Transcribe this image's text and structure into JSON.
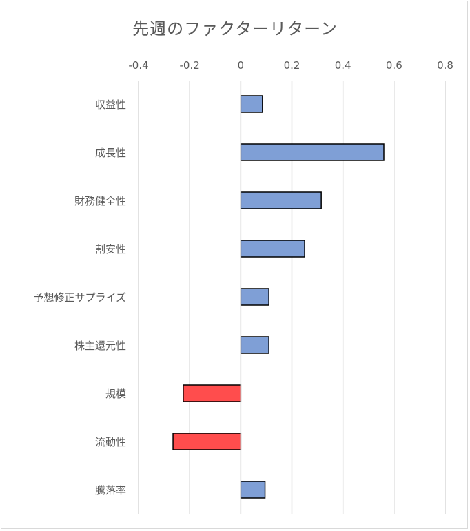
{
  "chart_data": {
    "type": "bar",
    "orientation": "horizontal",
    "title": "先週のファクターリターン",
    "xlabel": "",
    "ylabel": "",
    "xlim": [
      -0.4,
      0.8
    ],
    "x_ticks": [
      "-0.4",
      "-0.2",
      "0",
      "0.2",
      "0.4",
      "0.6",
      "0.8"
    ],
    "x_axis_position": "top",
    "grid": true,
    "legend": "none",
    "categories": [
      "収益性",
      "成長性",
      "財務健全性",
      "割安性",
      "予想修正サプライズ",
      "株主還元性",
      "規模",
      "流動性",
      "騰落率"
    ],
    "values": [
      0.085,
      0.56,
      0.315,
      0.25,
      0.11,
      0.11,
      -0.225,
      -0.265,
      0.095
    ],
    "colors": {
      "positive": "#7f9fd6",
      "negative": "#ff4d4d",
      "gridline": "#d9d9d9",
      "bar_border": "#000000"
    }
  }
}
